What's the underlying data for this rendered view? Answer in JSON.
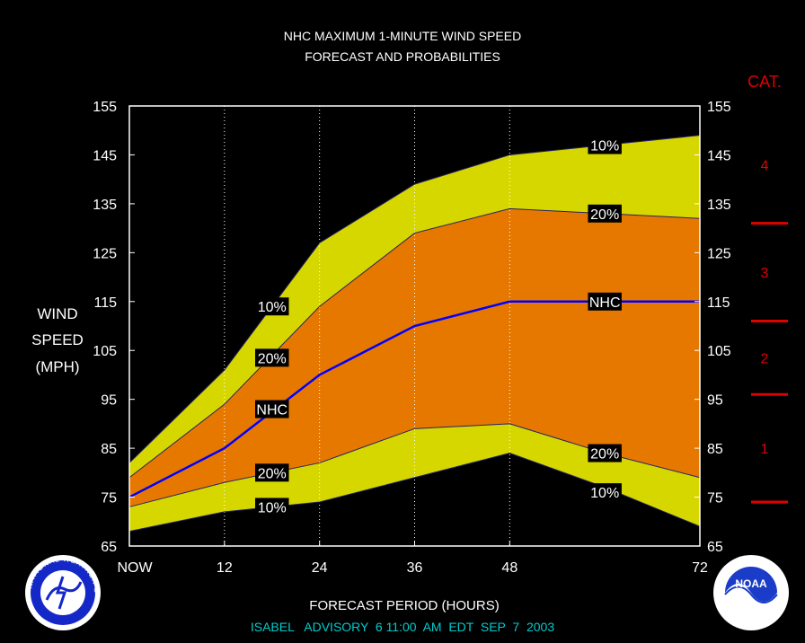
{
  "chart_data": {
    "type": "area",
    "title": "NHC MAXIMUM 1-MINUTE WIND SPEED",
    "subtitle": "FORECAST AND PROBABILITIES",
    "xlabel": "FORECAST PERIOD (HOURS)",
    "ylabel_lines": [
      "WIND",
      "SPEED",
      "(MPH)"
    ],
    "ylim": [
      65,
      155
    ],
    "xlim": [
      0,
      72
    ],
    "x_ticks": [
      {
        "x": 0,
        "label": "NOW"
      },
      {
        "x": 12,
        "label": "12"
      },
      {
        "x": 24,
        "label": "24"
      },
      {
        "x": 36,
        "label": "36"
      },
      {
        "x": 48,
        "label": "48"
      },
      {
        "x": 72,
        "label": "72"
      }
    ],
    "y_ticks": [
      65,
      75,
      85,
      95,
      105,
      115,
      125,
      135,
      145,
      155
    ],
    "x": [
      0,
      12,
      24,
      36,
      48,
      60,
      72
    ],
    "series": [
      {
        "name": "10%",
        "role": "upper10",
        "values": [
          82,
          101,
          127,
          139,
          145,
          147,
          149
        ]
      },
      {
        "name": "20%",
        "role": "upper20",
        "values": [
          79,
          94,
          114,
          129,
          134,
          133,
          132
        ]
      },
      {
        "name": "NHC",
        "role": "nhc",
        "values": [
          75,
          85,
          100,
          110,
          115,
          115,
          115
        ]
      },
      {
        "name": "20%",
        "role": "lower20",
        "values": [
          73,
          78,
          82,
          89,
          90,
          84,
          79
        ]
      },
      {
        "name": "10%",
        "role": "lower10",
        "values": [
          68,
          72,
          74,
          79,
          84,
          77,
          69
        ]
      }
    ],
    "series_labels": [
      {
        "text": "10%",
        "x": 18,
        "y": 114
      },
      {
        "text": "20%",
        "x": 18,
        "y": 103.5
      },
      {
        "text": "NHC",
        "x": 18,
        "y": 93
      },
      {
        "text": "20%",
        "x": 18,
        "y": 80
      },
      {
        "text": "10%",
        "x": 18,
        "y": 73
      },
      {
        "text": "10%",
        "x": 60,
        "y": 147
      },
      {
        "text": "20%",
        "x": 60,
        "y": 133
      },
      {
        "text": "NHC",
        "x": 60,
        "y": 115
      },
      {
        "text": "20%",
        "x": 60,
        "y": 84
      },
      {
        "text": "10%",
        "x": 60,
        "y": 76
      }
    ],
    "grid_x": [
      12,
      24,
      36,
      48
    ],
    "category": {
      "title": "CAT.",
      "thresholds": [
        74,
        96,
        111,
        131
      ],
      "labels": [
        {
          "text": "1",
          "y": 85
        },
        {
          "text": "2",
          "y": 103.5
        },
        {
          "text": "3",
          "y": 121
        },
        {
          "text": "4",
          "y": 143
        }
      ]
    },
    "colors": {
      "outer_band": "#d7d700",
      "inner_band": "#e67800",
      "nhc_line": "#0000ff",
      "category": "#e00000",
      "background": "#000000",
      "footer": "#00cccc"
    }
  },
  "footer": "ISABEL   ADVISORY  6 11:00  AM  EDT  SEP  7  2003",
  "logos": {
    "left": "NATIONAL WEATHER SERVICE",
    "right": "NOAA"
  }
}
